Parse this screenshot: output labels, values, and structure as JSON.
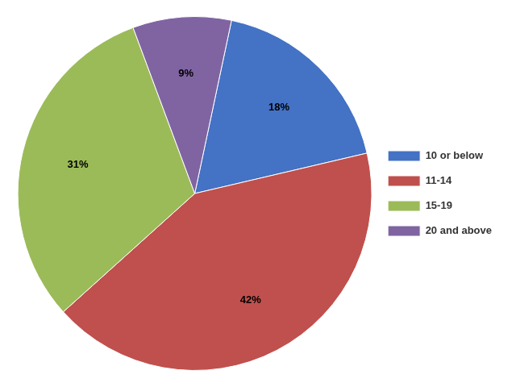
{
  "chart_data": {
    "type": "pie",
    "categories": [
      "10 or below",
      "11-14",
      "15-19",
      "20 and above"
    ],
    "values": [
      18,
      42,
      31,
      9
    ],
    "value_labels": [
      "18%",
      "42%",
      "31%",
      "9%"
    ],
    "colors": [
      "#4472C4",
      "#C0504D",
      "#9BBB59",
      "#8064A2"
    ],
    "data_labels": true,
    "legend": "right"
  }
}
